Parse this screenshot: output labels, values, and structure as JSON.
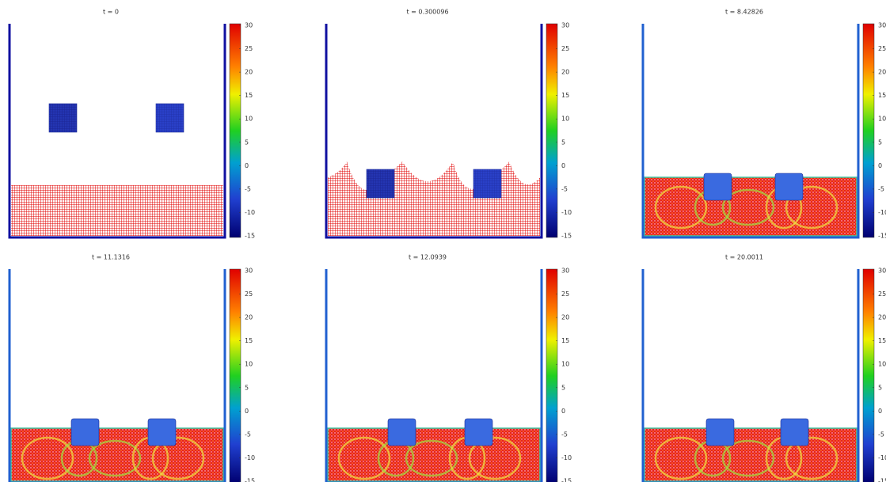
{
  "panels": [
    {
      "title": "t = 0",
      "colorbar": {
        "range": [
          -15,
          30
        ],
        "ticks": [
          30,
          25,
          20,
          15,
          10,
          5,
          0,
          -5,
          -10,
          -15
        ]
      }
    },
    {
      "title": "t = 0.300096",
      "colorbar": {
        "range": [
          -15,
          30
        ],
        "ticks": [
          30,
          25,
          20,
          15,
          10,
          5,
          0,
          -5,
          -10,
          -15
        ]
      }
    },
    {
      "title": "t = 8.42826",
      "colorbar": {
        "range": [
          -15,
          30
        ],
        "ticks": [
          30,
          25,
          20,
          15,
          10,
          5,
          0,
          -5,
          -10,
          -15
        ]
      }
    },
    {
      "title": "t = 11.1316",
      "colorbar": {
        "range": [
          -15,
          30
        ],
        "ticks": [
          30,
          25,
          20,
          15,
          10,
          5,
          0,
          -5,
          -10,
          -15
        ]
      }
    },
    {
      "title": "t = 12.0939",
      "colorbar": {
        "range": [
          -15,
          30
        ],
        "ticks": [
          30,
          25,
          20,
          15,
          10,
          5,
          0,
          -5,
          -10,
          -15
        ]
      }
    },
    {
      "title": "t = 20.0011",
      "colorbar": {
        "range": [
          -15,
          30
        ],
        "ticks": [
          30,
          25,
          20,
          15,
          10,
          5,
          0,
          -5,
          -10,
          -15
        ]
      }
    }
  ]
}
